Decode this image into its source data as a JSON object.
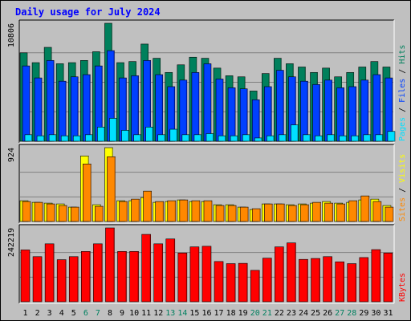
{
  "chart_data": [
    {
      "type": "bar",
      "title": "Daily usage for July 2024",
      "ylabel": "10806",
      "legend": [
        "Pages",
        "Files",
        "Hits"
      ],
      "colors": {
        "Hits": "#00805c",
        "Files": "#0040ff",
        "Pages": "#00e0ff"
      },
      "categories": [
        "1",
        "2",
        "3",
        "4",
        "5",
        "6",
        "7",
        "8",
        "9",
        "10",
        "11",
        "12",
        "13",
        "14",
        "15",
        "16",
        "17",
        "18",
        "19",
        "20",
        "21",
        "22",
        "23",
        "24",
        "25",
        "26",
        "27",
        "28",
        "29",
        "30",
        "31"
      ],
      "ylim": [
        0,
        10806
      ],
      "series": [
        {
          "name": "Hits",
          "values": [
            8100,
            7200,
            8600,
            7100,
            7200,
            7400,
            8200,
            10806,
            7200,
            7300,
            8900,
            7600,
            6300,
            7000,
            7700,
            7600,
            6700,
            6000,
            5900,
            4600,
            6200,
            7600,
            7100,
            6800,
            6300,
            6700,
            5900,
            6300,
            6800,
            7300,
            6800
          ]
        },
        {
          "name": "Files",
          "values": [
            6900,
            5800,
            7400,
            5500,
            5900,
            6100,
            6900,
            8300,
            5800,
            6000,
            7400,
            6100,
            5000,
            5600,
            6300,
            7100,
            5700,
            4900,
            4800,
            3800,
            5000,
            6500,
            5900,
            5500,
            5200,
            5600,
            4900,
            5000,
            5600,
            6100,
            5800
          ]
        },
        {
          "name": "Pages",
          "values": [
            600,
            500,
            600,
            500,
            500,
            600,
            1300,
            2100,
            1000,
            600,
            1300,
            600,
            1100,
            600,
            600,
            700,
            500,
            500,
            600,
            300,
            500,
            600,
            1500,
            600,
            500,
            600,
            500,
            500,
            600,
            600,
            900
          ]
        }
      ]
    },
    {
      "type": "bar",
      "ylabel": "924",
      "legend": [
        "Sites",
        "Visits"
      ],
      "colors": {
        "Visits": "#ffff00",
        "Sites": "#ff8800"
      },
      "categories": [
        "1",
        "2",
        "3",
        "4",
        "5",
        "6",
        "7",
        "8",
        "9",
        "10",
        "11",
        "12",
        "13",
        "14",
        "15",
        "16",
        "17",
        "18",
        "19",
        "20",
        "21",
        "22",
        "23",
        "24",
        "25",
        "26",
        "27",
        "28",
        "29",
        "30",
        "31"
      ],
      "ylim": [
        0,
        924
      ],
      "series": [
        {
          "name": "Visits",
          "values": [
            260,
            240,
            230,
            220,
            180,
            820,
            210,
            924,
            260,
            260,
            300,
            240,
            250,
            270,
            250,
            250,
            210,
            210,
            180,
            150,
            220,
            220,
            210,
            220,
            230,
            250,
            230,
            240,
            270,
            280,
            200
          ]
        },
        {
          "name": "Sites",
          "values": [
            250,
            240,
            220,
            200,
            180,
            720,
            190,
            810,
            250,
            280,
            380,
            250,
            260,
            270,
            260,
            260,
            200,
            200,
            180,
            160,
            220,
            220,
            200,
            210,
            240,
            230,
            220,
            260,
            320,
            250,
            180
          ]
        }
      ]
    },
    {
      "type": "bar",
      "ylabel": "242219",
      "legend": [
        "KBytes"
      ],
      "colors": {
        "KBytes": "#ff0000"
      },
      "categories": [
        "1",
        "2",
        "3",
        "4",
        "5",
        "6",
        "7",
        "8",
        "9",
        "10",
        "11",
        "12",
        "13",
        "14",
        "15",
        "16",
        "17",
        "18",
        "19",
        "20",
        "21",
        "22",
        "23",
        "24",
        "25",
        "26",
        "27",
        "28",
        "29",
        "30",
        "31"
      ],
      "ylim": [
        0,
        242219
      ],
      "series": [
        {
          "name": "KBytes",
          "values": [
            170000,
            148000,
            190000,
            138000,
            148000,
            165000,
            190000,
            242219,
            165000,
            165000,
            221000,
            190000,
            206000,
            160000,
            180000,
            182000,
            132000,
            125000,
            126000,
            103000,
            143000,
            180000,
            193000,
            139000,
            142000,
            148000,
            131000,
            125000,
            145000,
            171000,
            160000
          ]
        }
      ]
    }
  ],
  "weekend_days": [
    "6",
    "7",
    "13",
    "14",
    "20",
    "21",
    "27",
    "28"
  ]
}
